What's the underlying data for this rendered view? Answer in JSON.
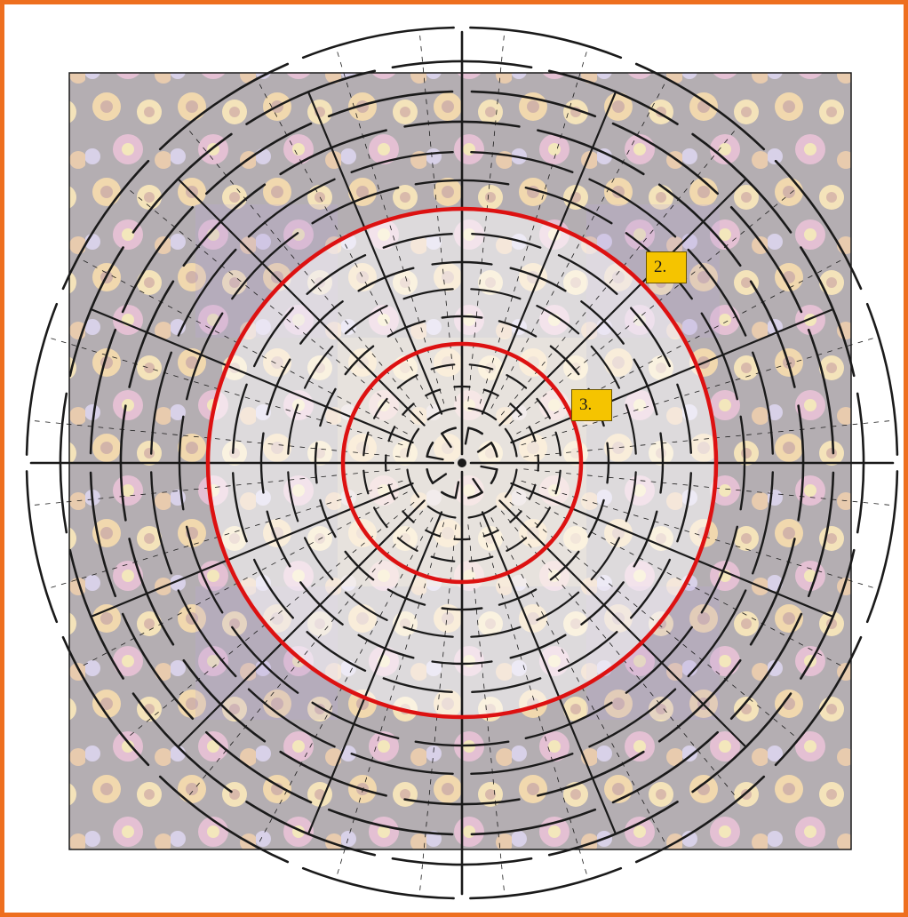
{
  "colors": {
    "frame": "#ee6f1f",
    "highlight_ring": "#dd1111",
    "label_fill": "#f5c400",
    "template_line": "#1a1a1a",
    "fabric_dark": "#3a2a36",
    "fabric_gold": "#d99a2b",
    "fabric_lilac": "#9a86c2"
  },
  "labels": {
    "ring_outer": "2.",
    "ring_inner": "3."
  }
}
